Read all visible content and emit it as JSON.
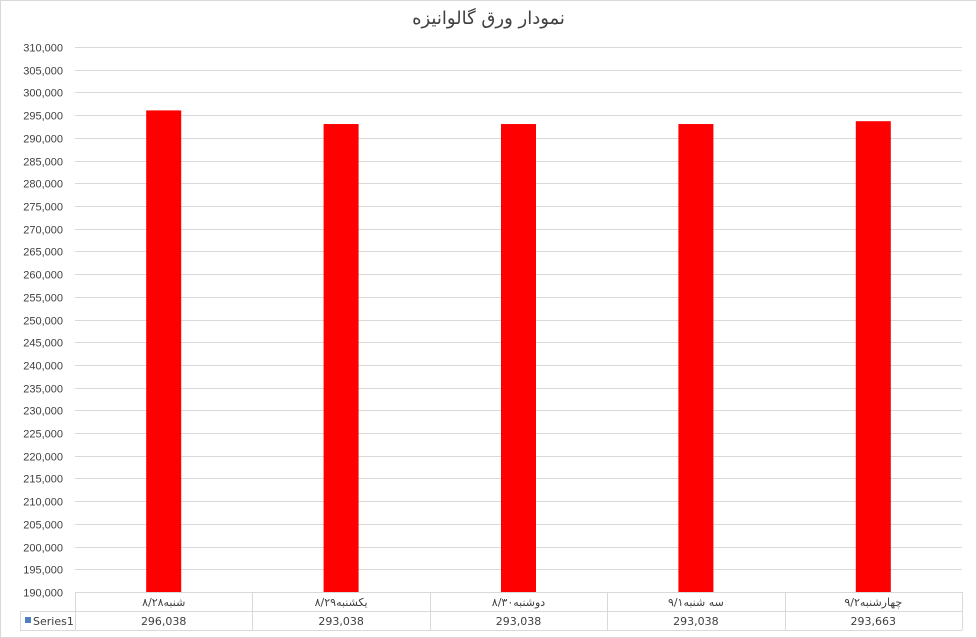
{
  "chart_data": {
    "type": "bar",
    "title": "نمودار ورق گالوانیزه",
    "categories": [
      "شنبه۸/۲۸",
      "یکشنبه۸/۲۹",
      "دوشنبه۸/۳۰",
      "سه شنبه۹/۱",
      "چهارشنبه۹/۲"
    ],
    "series": [
      {
        "name": "Series1",
        "values": [
          296038,
          293038,
          293038,
          293038,
          293663
        ],
        "labels": [
          "296,038",
          "293,038",
          "293,038",
          "293,038",
          "293,663"
        ],
        "color": "#ff0000"
      }
    ],
    "ylim": [
      190000,
      310000
    ],
    "ytick_step": 5000,
    "grid": true,
    "legend": "data-table",
    "legend_color": "#4f81bd",
    "data_table": true
  }
}
